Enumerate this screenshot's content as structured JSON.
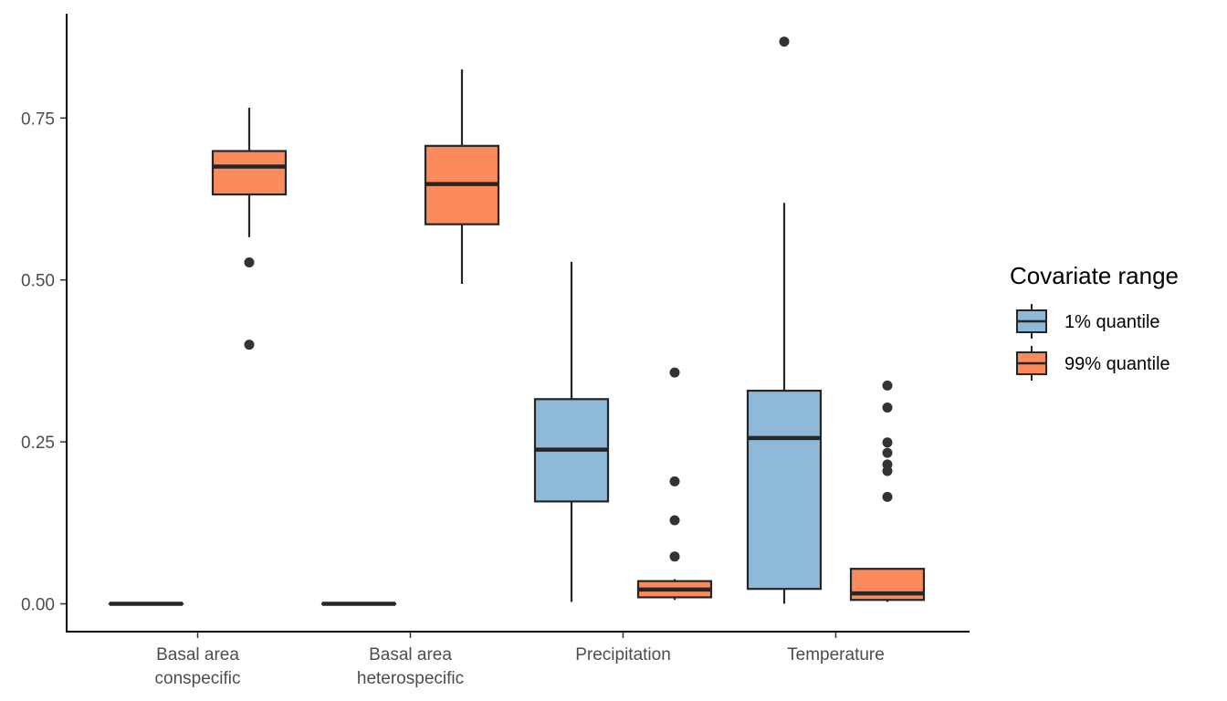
{
  "chart_data": {
    "type": "boxplot",
    "title": "",
    "xlabel": "",
    "ylabel": "",
    "ylim": [
      -0.05,
      0.9
    ],
    "yticks": [
      "0.00",
      "0.25",
      "0.50",
      "0.75"
    ],
    "grid": false,
    "legend_position": "right",
    "legend_title": "Covariate range",
    "colors": {
      "1% quantile": "#8fb9d8",
      "99% quantile": "#fb8a5d",
      "outline": "#262626"
    },
    "categories": [
      {
        "label_lines": [
          "Basal area",
          "conspecific"
        ]
      },
      {
        "label_lines": [
          "Basal area",
          "heterospecific"
        ]
      },
      {
        "label_lines": [
          "Precipitation"
        ]
      },
      {
        "label_lines": [
          "Temperature"
        ]
      }
    ],
    "series": [
      {
        "name": "1% quantile",
        "boxes": [
          {
            "min": 0.0,
            "q1": 0.0,
            "median": 0.0,
            "q3": 0.0,
            "max": 0.0,
            "outliers": []
          },
          {
            "min": 0.0,
            "q1": 0.0,
            "median": 0.0,
            "q3": 0.0,
            "max": 0.0,
            "outliers": []
          },
          {
            "min": 0.003,
            "q1": 0.158,
            "median": 0.238,
            "q3": 0.316,
            "max": 0.528,
            "outliers": []
          },
          {
            "min": 0.0,
            "q1": 0.023,
            "median": 0.256,
            "q3": 0.329,
            "max": 0.619,
            "outliers": [
              0.868
            ]
          }
        ]
      },
      {
        "name": "99% quantile",
        "boxes": [
          {
            "min": 0.566,
            "q1": 0.632,
            "median": 0.675,
            "q3": 0.699,
            "max": 0.766,
            "outliers": [
              0.527,
              0.4
            ]
          },
          {
            "min": 0.494,
            "q1": 0.586,
            "median": 0.648,
            "q3": 0.707,
            "max": 0.825,
            "outliers": []
          },
          {
            "min": 0.006,
            "q1": 0.01,
            "median": 0.022,
            "q3": 0.035,
            "max": 0.038,
            "outliers": [
              0.357,
              0.189,
              0.129,
              0.073
            ]
          },
          {
            "min": 0.003,
            "q1": 0.006,
            "median": 0.016,
            "q3": 0.054,
            "max": 0.054,
            "outliers": [
              0.337,
              0.303,
              0.249,
              0.233,
              0.215,
              0.205,
              0.165
            ]
          }
        ]
      }
    ]
  }
}
